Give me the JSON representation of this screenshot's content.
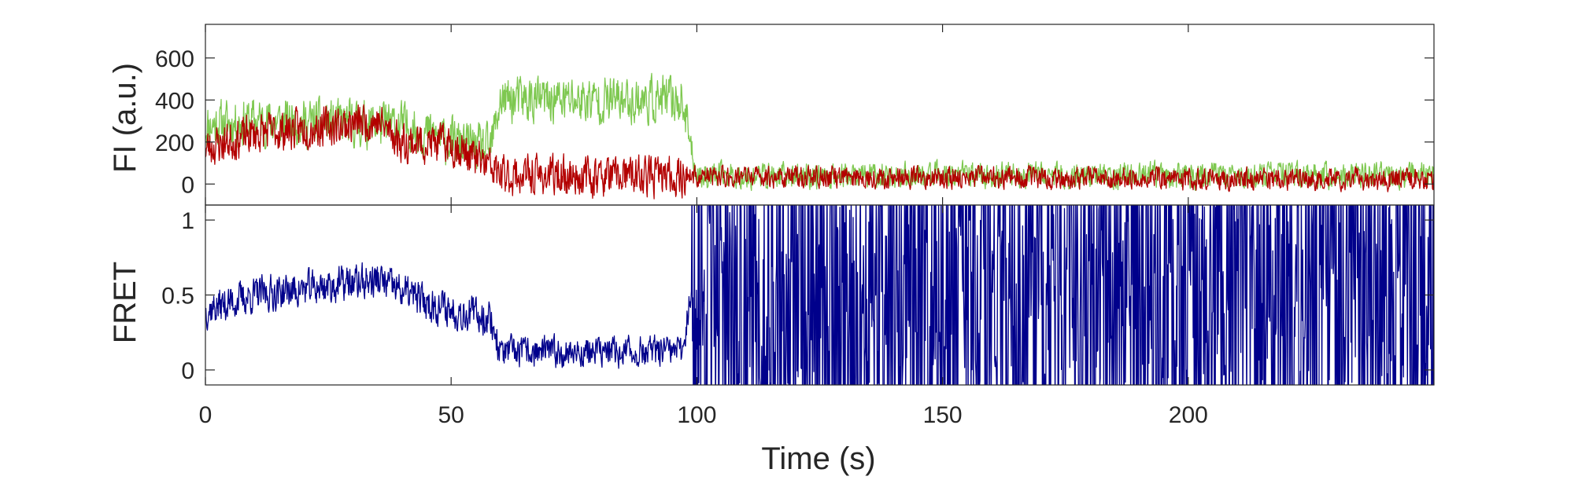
{
  "chart_data": [
    {
      "type": "line",
      "panel": "top",
      "ylabel": "FI (a.u.)",
      "xlabel": "",
      "xlim": [
        0,
        250
      ],
      "ylim": [
        -100,
        760
      ],
      "yticks": [
        0,
        200,
        400,
        600
      ],
      "ytick_labels": [
        "0",
        "200",
        "400",
        "600"
      ],
      "grid": false,
      "series": [
        {
          "color": "#7ec850",
          "profile": [
            [
              0,
              280
            ],
            [
              10,
              300
            ],
            [
              40,
              280
            ],
            [
              50,
              200
            ],
            [
              58,
              160
            ],
            [
              60,
              400
            ],
            [
              97,
              400
            ],
            [
              100,
              40
            ],
            [
              250,
              40
            ]
          ],
          "noise": 130,
          "seed": 11
        },
        {
          "color": "#b30000",
          "profile": [
            [
              0,
              170
            ],
            [
              10,
              240
            ],
            [
              35,
              300
            ],
            [
              40,
              200
            ],
            [
              50,
              190
            ],
            [
              58,
              80
            ],
            [
              60,
              40
            ],
            [
              250,
              20
            ]
          ],
          "noise": 110,
          "seed": 23
        }
      ]
    },
    {
      "type": "line",
      "panel": "bottom",
      "ylabel": "FRET",
      "xlabel": "Time (s)",
      "xlim": [
        0,
        250
      ],
      "ylim": [
        -0.1,
        1.1
      ],
      "yticks": [
        0,
        0.5,
        1
      ],
      "ytick_labels": [
        "0",
        "0.5",
        "1"
      ],
      "xticks": [
        0,
        50,
        100,
        150,
        200
      ],
      "xtick_labels": [
        "0",
        "50",
        "100",
        "150",
        "200"
      ],
      "grid": false,
      "series": [
        {
          "color": "#00008b",
          "profile": [
            [
              0,
              0.4
            ],
            [
              10,
              0.5
            ],
            [
              35,
              0.6
            ],
            [
              45,
              0.45
            ],
            [
              50,
              0.4
            ],
            [
              58,
              0.35
            ],
            [
              60,
              0.12
            ],
            [
              97,
              0.12
            ],
            [
              99,
              0.55
            ],
            [
              250,
              0.55
            ]
          ],
          "noise_by_segment": [
            [
              0,
              0.14
            ],
            [
              60,
              0.12
            ],
            [
              99,
              0.55
            ]
          ],
          "seed": 37
        }
      ]
    }
  ]
}
